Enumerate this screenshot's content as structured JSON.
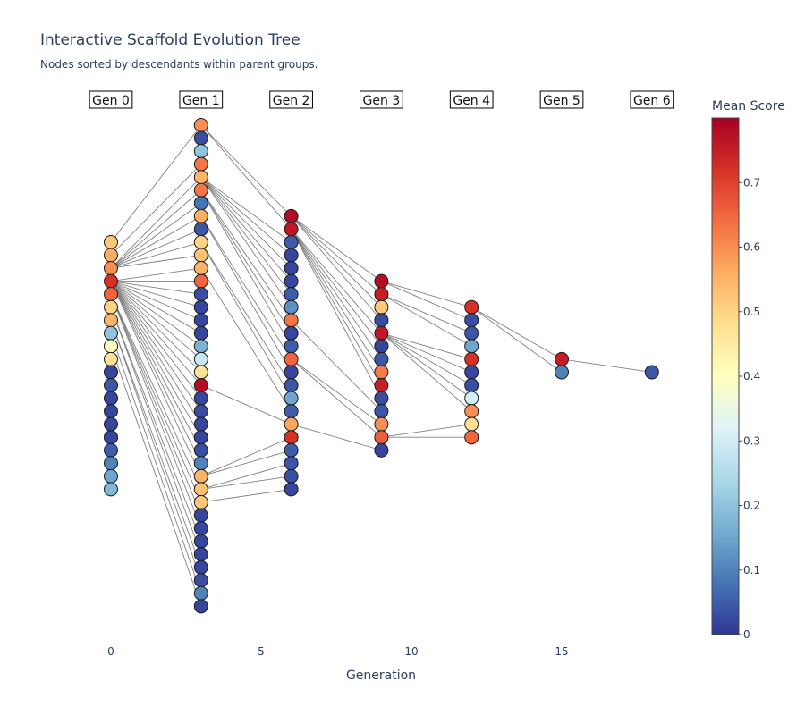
{
  "chart_data": {
    "type": "scatter",
    "title": "Interactive Scaffold Evolution Tree",
    "subtitle": "Nodes sorted by descendants within parent groups.",
    "xlabel": "Generation",
    "x_ticks": [
      0,
      5,
      10,
      15
    ],
    "xlim": [
      -3.5,
      21
    ],
    "generation_labels": [
      {
        "label": "Gen 0",
        "x": 0
      },
      {
        "label": "Gen 1",
        "x": 3
      },
      {
        "label": "Gen 2",
        "x": 6
      },
      {
        "label": "Gen 3",
        "x": 9
      },
      {
        "label": "Gen 4",
        "x": 12
      },
      {
        "label": "Gen 5",
        "x": 15
      },
      {
        "label": "Gen 6",
        "x": 18
      }
    ],
    "colorbar": {
      "title": "Mean Score",
      "range": [
        0,
        0.8
      ],
      "ticks": [
        0,
        0.1,
        0.2,
        0.3,
        0.4,
        0.5,
        0.6,
        0.7
      ],
      "colorscale": [
        "#313695",
        "#4575b4",
        "#74add1",
        "#abd9e9",
        "#e0f3f8",
        "#ffffbf",
        "#fee090",
        "#fdae61",
        "#f46d43",
        "#d73027",
        "#a50026"
      ]
    },
    "generations": [
      {
        "gen": 0,
        "x": 0,
        "top_row": 9,
        "scores": [
          0.52,
          0.56,
          0.6,
          0.72,
          0.65,
          0.5,
          0.55,
          0.2,
          0.4,
          0.48,
          0.02,
          0.04,
          0.02,
          0.02,
          0.02,
          0.02,
          0.05,
          0.1,
          0.15,
          0.18
        ]
      },
      {
        "gen": 1,
        "x": 3,
        "top_row": 0,
        "scores": [
          0.6,
          0.03,
          0.2,
          0.63,
          0.55,
          0.63,
          0.08,
          0.56,
          0.04,
          0.5,
          0.53,
          0.55,
          0.65,
          0.03,
          0.02,
          0.02,
          0.02,
          0.17,
          0.28,
          0.47,
          0.78,
          0.02,
          0.03,
          0.02,
          0.02,
          0.03,
          0.1,
          0.55,
          0.53,
          0.52,
          0.02,
          0.02,
          0.02,
          0.02,
          0.02,
          0.03,
          0.1,
          0.02
        ]
      },
      {
        "gen": 2,
        "x": 6,
        "top_row": 7,
        "scores": [
          0.78,
          0.76,
          0.05,
          0.02,
          0.02,
          0.02,
          0.05,
          0.12,
          0.63,
          0.02,
          0.05,
          0.65,
          0.02,
          0.04,
          0.15,
          0.05,
          0.57,
          0.72,
          0.05,
          0.04,
          0.03,
          0.02
        ]
      },
      {
        "gen": 3,
        "x": 9,
        "top_row": 12,
        "scores": [
          0.78,
          0.75,
          0.52,
          0.03,
          0.76,
          0.02,
          0.04,
          0.62,
          0.75,
          0.03,
          0.04,
          0.6,
          0.66,
          0.02
        ]
      },
      {
        "gen": 4,
        "x": 12,
        "top_row": 14,
        "scores": [
          0.72,
          0.03,
          0.04,
          0.15,
          0.72,
          0.02,
          0.03,
          0.3,
          0.6,
          0.48,
          0.65
        ]
      },
      {
        "gen": 5,
        "x": 15,
        "top_row": 18,
        "scores": [
          0.75,
          0.1
        ]
      },
      {
        "gen": 6,
        "x": 18,
        "top_row": 19,
        "scores": [
          0.04
        ]
      }
    ],
    "edges": [
      {
        "g": 0,
        "p": 0,
        "c": 0
      },
      {
        "g": 0,
        "p": 1,
        "c": 3
      },
      {
        "g": 0,
        "p": 2,
        "c": 4
      },
      {
        "g": 0,
        "p": 2,
        "c": 5
      },
      {
        "g": 0,
        "p": 2,
        "c": 6
      },
      {
        "g": 0,
        "p": 2,
        "c": 7
      },
      {
        "g": 0,
        "p": 2,
        "c": 8
      },
      {
        "g": 0,
        "p": 2,
        "c": 9
      },
      {
        "g": 0,
        "p": 2,
        "c": 10
      },
      {
        "g": 0,
        "p": 3,
        "c": 11
      },
      {
        "g": 0,
        "p": 3,
        "c": 12
      },
      {
        "g": 0,
        "p": 3,
        "c": 13
      },
      {
        "g": 0,
        "p": 3,
        "c": 14
      },
      {
        "g": 0,
        "p": 3,
        "c": 15
      },
      {
        "g": 0,
        "p": 3,
        "c": 16
      },
      {
        "g": 0,
        "p": 3,
        "c": 17
      },
      {
        "g": 0,
        "p": 3,
        "c": 18
      },
      {
        "g": 0,
        "p": 3,
        "c": 19
      },
      {
        "g": 0,
        "p": 3,
        "c": 20
      },
      {
        "g": 0,
        "p": 3,
        "c": 21
      },
      {
        "g": 0,
        "p": 3,
        "c": 22
      },
      {
        "g": 0,
        "p": 3,
        "c": 23
      },
      {
        "g": 0,
        "p": 3,
        "c": 24
      },
      {
        "g": 0,
        "p": 3,
        "c": 25
      },
      {
        "g": 0,
        "p": 3,
        "c": 26
      },
      {
        "g": 0,
        "p": 3,
        "c": 27
      },
      {
        "g": 0,
        "p": 4,
        "c": 28
      },
      {
        "g": 0,
        "p": 4,
        "c": 29
      },
      {
        "g": 0,
        "p": 4,
        "c": 30
      },
      {
        "g": 0,
        "p": 4,
        "c": 31
      },
      {
        "g": 0,
        "p": 5,
        "c": 32
      },
      {
        "g": 0,
        "p": 5,
        "c": 33
      },
      {
        "g": 0,
        "p": 6,
        "c": 34
      },
      {
        "g": 0,
        "p": 6,
        "c": 35
      },
      {
        "g": 0,
        "p": 7,
        "c": 36
      },
      {
        "g": 0,
        "p": 8,
        "c": 37
      },
      {
        "g": 1,
        "p": 0,
        "c": 0
      },
      {
        "g": 1,
        "p": 0,
        "c": 1
      },
      {
        "g": 1,
        "p": 4,
        "c": 2
      },
      {
        "g": 1,
        "p": 4,
        "c": 3
      },
      {
        "g": 1,
        "p": 4,
        "c": 4
      },
      {
        "g": 1,
        "p": 4,
        "c": 5
      },
      {
        "g": 1,
        "p": 4,
        "c": 6
      },
      {
        "g": 1,
        "p": 4,
        "c": 7
      },
      {
        "g": 1,
        "p": 5,
        "c": 8
      },
      {
        "g": 1,
        "p": 5,
        "c": 9
      },
      {
        "g": 1,
        "p": 5,
        "c": 10
      },
      {
        "g": 1,
        "p": 7,
        "c": 11
      },
      {
        "g": 1,
        "p": 7,
        "c": 12
      },
      {
        "g": 1,
        "p": 9,
        "c": 13
      },
      {
        "g": 1,
        "p": 9,
        "c": 14
      },
      {
        "g": 1,
        "p": 11,
        "c": 15
      },
      {
        "g": 1,
        "p": 20,
        "c": 16
      },
      {
        "g": 1,
        "p": 27,
        "c": 17
      },
      {
        "g": 1,
        "p": 27,
        "c": 18
      },
      {
        "g": 1,
        "p": 28,
        "c": 19
      },
      {
        "g": 1,
        "p": 28,
        "c": 20
      },
      {
        "g": 1,
        "p": 29,
        "c": 21
      },
      {
        "g": 2,
        "p": 0,
        "c": 0
      },
      {
        "g": 2,
        "p": 0,
        "c": 1
      },
      {
        "g": 2,
        "p": 0,
        "c": 2
      },
      {
        "g": 2,
        "p": 0,
        "c": 3
      },
      {
        "g": 2,
        "p": 1,
        "c": 4
      },
      {
        "g": 2,
        "p": 1,
        "c": 5
      },
      {
        "g": 2,
        "p": 1,
        "c": 6
      },
      {
        "g": 2,
        "p": 1,
        "c": 7
      },
      {
        "g": 2,
        "p": 1,
        "c": 8
      },
      {
        "g": 2,
        "p": 1,
        "c": 9
      },
      {
        "g": 2,
        "p": 8,
        "c": 10
      },
      {
        "g": 2,
        "p": 11,
        "c": 11
      },
      {
        "g": 2,
        "p": 11,
        "c": 12
      },
      {
        "g": 2,
        "p": 16,
        "c": 13
      },
      {
        "g": 3,
        "p": 0,
        "c": 0
      },
      {
        "g": 3,
        "p": 0,
        "c": 1
      },
      {
        "g": 3,
        "p": 1,
        "c": 2
      },
      {
        "g": 3,
        "p": 1,
        "c": 3
      },
      {
        "g": 3,
        "p": 4,
        "c": 4
      },
      {
        "g": 3,
        "p": 4,
        "c": 5
      },
      {
        "g": 3,
        "p": 4,
        "c": 6
      },
      {
        "g": 3,
        "p": 4,
        "c": 7
      },
      {
        "g": 3,
        "p": 4,
        "c": 8
      },
      {
        "g": 3,
        "p": 12,
        "c": 9
      },
      {
        "g": 3,
        "p": 12,
        "c": 10
      },
      {
        "g": 4,
        "p": 0,
        "c": 0
      },
      {
        "g": 4,
        "p": 0,
        "c": 1
      },
      {
        "g": 5,
        "p": 0,
        "c": 0
      }
    ]
  }
}
